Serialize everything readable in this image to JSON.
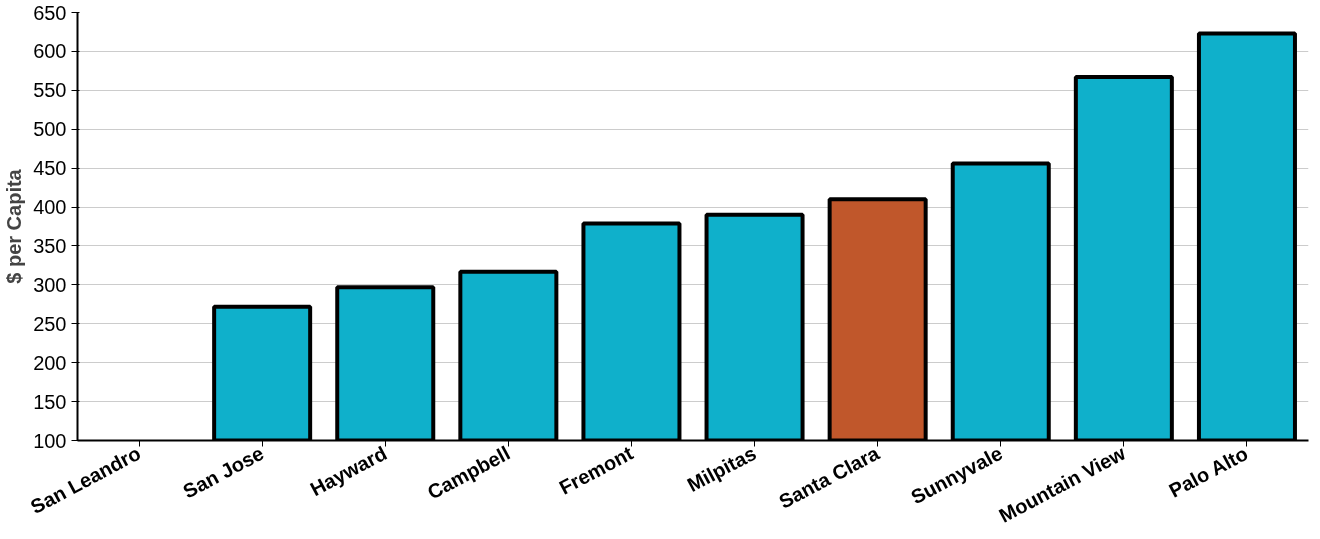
{
  "chart_data": {
    "type": "bar",
    "ylabel": "$ per Capita",
    "categories": [
      "San Leandro",
      "San Jose",
      "Hayward",
      "Campbell",
      "Fremont",
      "Milpitas",
      "Santa Clara",
      "Sunnyvale",
      "Mountain View",
      "Palo Alto"
    ],
    "values": [
      null,
      272,
      297,
      317,
      379,
      390,
      410,
      456,
      567,
      623
    ],
    "colors": [
      "#0fb0cb",
      "#0fb0cb",
      "#0fb0cb",
      "#0fb0cb",
      "#0fb0cb",
      "#0fb0cb",
      "#c0572b",
      "#0fb0cb",
      "#0fb0cb",
      "#0fb0cb"
    ],
    "ylim": [
      100,
      650
    ],
    "yticks": [
      100,
      150,
      200,
      250,
      300,
      350,
      400,
      450,
      500,
      550,
      600,
      650
    ],
    "grid": "y"
  }
}
